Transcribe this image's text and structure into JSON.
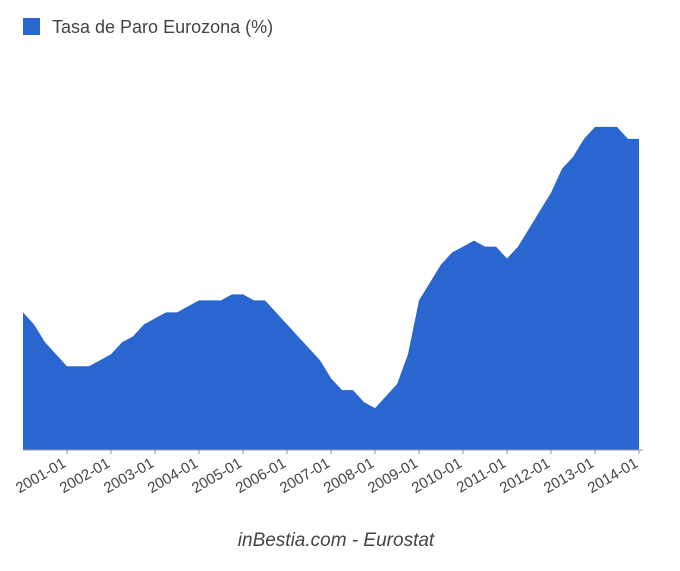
{
  "chart_data": {
    "type": "area",
    "legend": "Tasa de Paro Eurozona (%)",
    "source": "inBestia.com - Eurostat",
    "color": "#2a66d0",
    "x": [
      "2000-01",
      "2000-04",
      "2000-07",
      "2000-10",
      "2001-01",
      "2001-04",
      "2001-07",
      "2001-10",
      "2002-01",
      "2002-04",
      "2002-07",
      "2002-10",
      "2003-01",
      "2003-04",
      "2003-07",
      "2003-10",
      "2004-01",
      "2004-04",
      "2004-07",
      "2004-10",
      "2005-01",
      "2005-04",
      "2005-07",
      "2005-10",
      "2006-01",
      "2006-04",
      "2006-07",
      "2006-10",
      "2007-01",
      "2007-04",
      "2007-07",
      "2007-10",
      "2008-01",
      "2008-04",
      "2008-07",
      "2008-10",
      "2009-01",
      "2009-04",
      "2009-07",
      "2009-10",
      "2010-01",
      "2010-04",
      "2010-07",
      "2010-10",
      "2011-01",
      "2011-04",
      "2011-07",
      "2011-10",
      "2012-01",
      "2012-04",
      "2012-07",
      "2012-10",
      "2013-01",
      "2013-04",
      "2013-07",
      "2013-10",
      "2014-01"
    ],
    "values": [
      8.9,
      8.7,
      8.4,
      8.2,
      8.0,
      8.0,
      8.0,
      8.1,
      8.2,
      8.4,
      8.5,
      8.7,
      8.8,
      8.9,
      8.9,
      9.0,
      9.1,
      9.1,
      9.1,
      9.2,
      9.2,
      9.1,
      9.1,
      8.9,
      8.7,
      8.5,
      8.3,
      8.1,
      7.8,
      7.6,
      7.6,
      7.4,
      7.3,
      7.5,
      7.7,
      8.2,
      9.1,
      9.4,
      9.7,
      9.9,
      10.0,
      10.1,
      10.0,
      10.0,
      9.8,
      10.0,
      10.3,
      10.6,
      10.9,
      11.3,
      11.5,
      11.8,
      12.0,
      12.0,
      12.0,
      11.8,
      11.8
    ],
    "xlim": [
      "2000-01",
      "2014-01"
    ],
    "xticks": [
      "2001-01",
      "2002-01",
      "2003-01",
      "2004-01",
      "2005-01",
      "2006-01",
      "2007-01",
      "2008-01",
      "2009-01",
      "2010-01",
      "2011-01",
      "2012-01",
      "2013-01",
      "2014-01"
    ],
    "ylim": [
      6.6,
      12.6
    ]
  }
}
